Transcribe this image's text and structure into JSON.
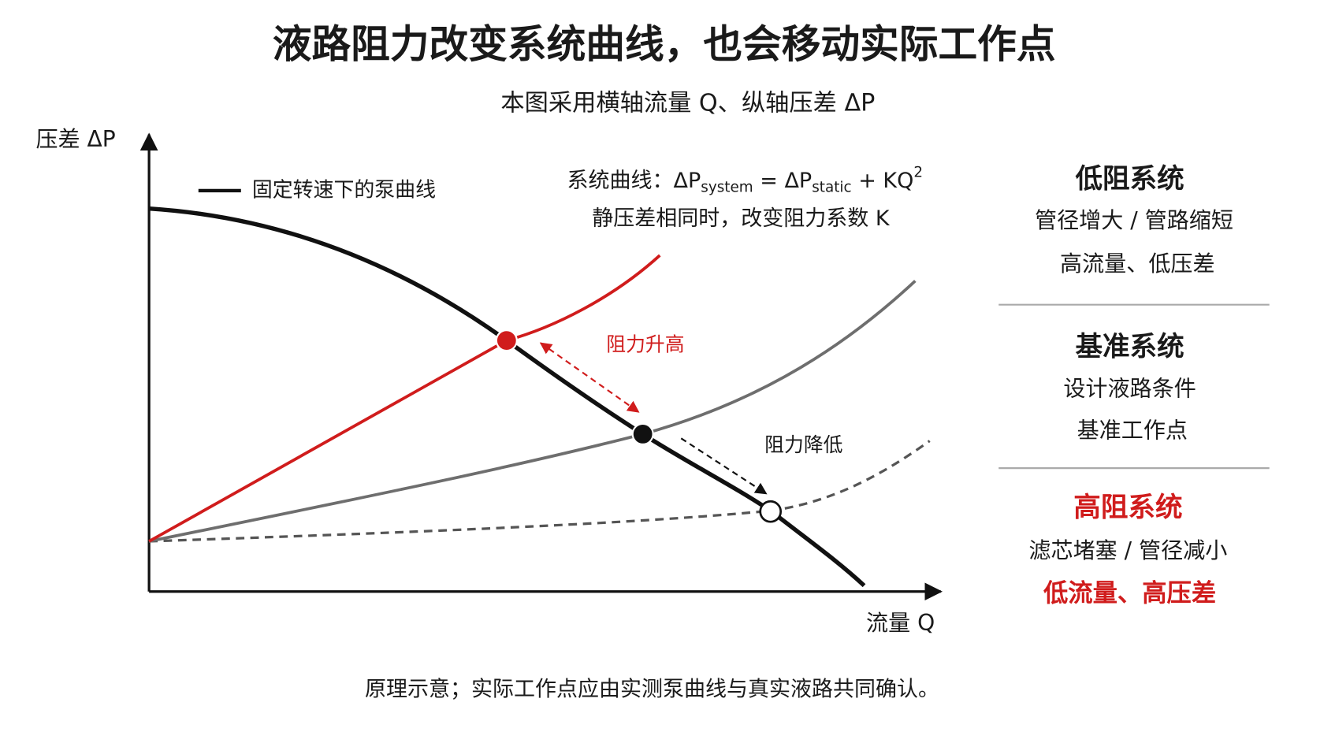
{
  "header": {
    "title": "液路阻力改变系统曲线，也会移动实际工作点",
    "subtitle": "本图采用横轴流量 Q、纵轴压差 ΔP"
  },
  "plot": {
    "y_axis_label": "压差 ΔP",
    "x_axis_label": "流量 Q",
    "legend": "固定转速下的泵曲线",
    "formula": {
      "prefix": "系统曲线：ΔP",
      "sub1": "system",
      "mid": " = ΔP",
      "sub2": "static",
      "tail": " + KQ",
      "sup": "2"
    },
    "formula_note": "静压差相同时，改变阻力系数 K",
    "annotations": {
      "higher": "阻力升高",
      "lower": "阻力降低"
    }
  },
  "panel": {
    "sections": [
      {
        "title": "低阻系统",
        "lines": [
          "管径增大 / 管路缩短",
          "高流量、低压差"
        ]
      },
      {
        "title": "基准系统",
        "lines": [
          "设计液路条件",
          "基准工作点"
        ]
      },
      {
        "title": "高阻系统",
        "lines": [
          "滤芯堵塞 / 管径减小",
          "低流量、高压差"
        ]
      }
    ]
  },
  "footer": {
    "note": "原理示意；实际工作点应由实测泵曲线与真实液路共同确认。"
  }
}
